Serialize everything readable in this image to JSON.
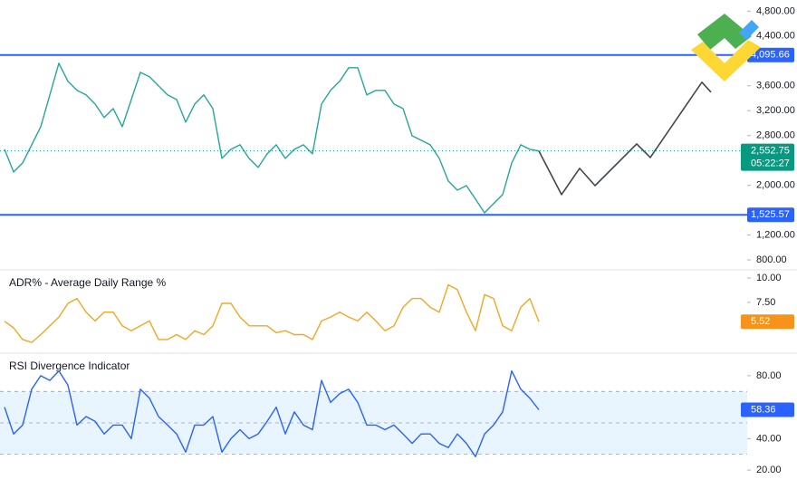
{
  "chart_data": [
    {
      "type": "line",
      "xlim": [
        -0.5,
        82
      ],
      "ylim": [
        640,
        4980
      ],
      "yticks": [
        {
          "value": 4800,
          "label": "4,800.00"
        },
        {
          "value": 4400,
          "label": "4,400.00"
        },
        {
          "value": 3600,
          "label": "3,600.00"
        },
        {
          "value": 3200,
          "label": "3,200.00"
        },
        {
          "value": 2800,
          "label": "2,800.00"
        },
        {
          "value": 2000,
          "label": "2,000.00"
        },
        {
          "value": 1200,
          "label": "1,200.00"
        },
        {
          "value": 800,
          "label": "800.00"
        }
      ],
      "series": [
        {
          "color": "#26a69a",
          "values": [
            2578,
            2214,
            2360,
            2651,
            2943,
            3453,
            3963,
            3672,
            3526,
            3453,
            3307,
            3089,
            3234,
            2943,
            3380,
            3817,
            3745,
            3599,
            3453,
            3380,
            3016,
            3307,
            3453,
            3234,
            2433,
            2578,
            2651,
            2433,
            2287,
            2506,
            2651,
            2433,
            2578,
            2651,
            2506,
            3307,
            3526,
            3672,
            3890,
            3890,
            3453,
            3526,
            3526,
            3307,
            3234,
            2797,
            2724,
            2651,
            2433,
            2068,
            1922,
            1995,
            1777,
            1558,
            1704,
            1850,
            2360,
            2651,
            2578,
            2552.75
          ]
        },
        {
          "color": "#434651",
          "x": [
            59,
            61.5,
            63.5,
            65.2,
            69.8,
            71.3,
            77,
            78
          ],
          "values": [
            2552.75,
            1850,
            2272,
            1995,
            2666,
            2447,
            3657,
            3497
          ]
        }
      ],
      "levels": [
        {
          "value": 4095.66,
          "label": "4,095.66",
          "color": "#2962ff"
        },
        {
          "value": 1525.57,
          "label": "1,525.57",
          "color": "#2962ff"
        }
      ],
      "last": {
        "value": 2552.75,
        "label": "2,552.75",
        "countdown": "05:22:27",
        "color": "#089981"
      }
    },
    {
      "type": "line",
      "title": "ADR% - Average Daily Range %",
      "ylim": [
        2.3,
        10.83
      ],
      "yticks": [
        {
          "value": 10,
          "label": "10.00"
        },
        {
          "value": 7.5,
          "label": "7.50"
        }
      ],
      "series": [
        {
          "color": "#f5a623",
          "values": [
            5.56,
            4.9,
            3.7,
            3.4,
            4.2,
            5.1,
            6.0,
            7.4,
            7.9,
            6.5,
            5.6,
            6.5,
            6.5,
            5.1,
            4.6,
            5.1,
            5.6,
            3.7,
            3.7,
            4.2,
            3.7,
            4.6,
            4.2,
            5.1,
            7.4,
            7.4,
            6.0,
            5.1,
            5.1,
            5.1,
            4.4,
            4.6,
            4.2,
            4.2,
            3.7,
            5.6,
            6.0,
            6.5,
            6.0,
            5.6,
            6.5,
            5.6,
            4.6,
            5.1,
            7.0,
            7.9,
            7.9,
            7.0,
            6.5,
            9.3,
            8.8,
            6.5,
            4.6,
            8.3,
            7.9,
            5.1,
            4.6,
            7.0,
            7.9,
            5.52
          ]
        }
      ],
      "last": {
        "value": 5.52,
        "label": "5.52",
        "color": "#f7931a"
      }
    },
    {
      "type": "line",
      "title": "RSI Divergence Indicator",
      "ylim": [
        8,
        94.3
      ],
      "yticks": [
        {
          "value": 80,
          "label": "80.00"
        },
        {
          "value": 40,
          "label": "40.00"
        },
        {
          "value": 20,
          "label": "20.00"
        }
      ],
      "band": [
        30,
        70
      ],
      "guides": [
        70,
        50,
        30
      ],
      "series": [
        {
          "color": "#2962ff",
          "values": [
            60,
            42.9,
            48.6,
            71.4,
            80,
            77,
            83,
            74,
            48.6,
            54,
            51,
            43,
            48.6,
            48.6,
            40,
            71.4,
            65.7,
            54,
            48.6,
            43,
            31.4,
            48.6,
            48.6,
            54,
            31.4,
            40,
            45.7,
            40,
            43,
            51,
            60,
            43,
            57,
            48.6,
            45.7,
            77,
            63,
            68.6,
            71.4,
            63,
            48.6,
            48.6,
            45.7,
            48.6,
            43,
            37,
            43,
            43,
            37,
            34.3,
            43,
            37,
            28.6,
            43,
            48.6,
            57,
            83,
            71.4,
            65.7,
            58.36
          ]
        }
      ],
      "last": {
        "value": 58.36,
        "label": "58.36",
        "color": "#2962ff"
      }
    }
  ]
}
